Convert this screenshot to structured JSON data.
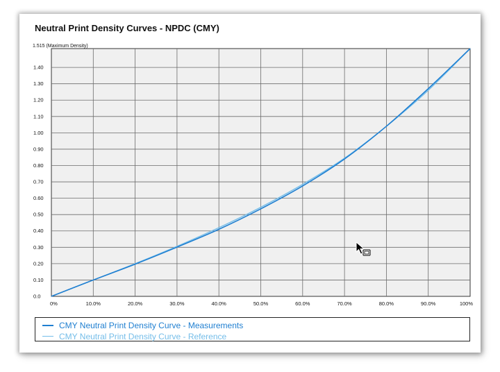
{
  "chart_data": {
    "type": "line",
    "title": "Neutral Print Density Curves - NPDC (CMY)",
    "y_top_label": "1.515 (Maximum Density)",
    "xlabel": "",
    "ylabel": "",
    "xlim": [
      0,
      100
    ],
    "ylim": [
      0,
      1.515
    ],
    "x_ticks": [
      "0%",
      "10.0%",
      "20.0%",
      "30.0%",
      "40.0%",
      "50.0%",
      "60.0%",
      "70.0%",
      "80.0%",
      "90.0%",
      "100%"
    ],
    "y_ticks": [
      "0.0",
      "0.10",
      "0.20",
      "0.30",
      "0.40",
      "0.50",
      "0.60",
      "0.70",
      "0.80",
      "0.90",
      "1.00",
      "1.10",
      "1.20",
      "1.30",
      "1.40"
    ],
    "y_tick_values": [
      0,
      0.1,
      0.2,
      0.3,
      0.4,
      0.5,
      0.6,
      0.7,
      0.8,
      0.9,
      1.0,
      1.1,
      1.2,
      1.3,
      1.4
    ],
    "grid": true,
    "legend_position": "bottom",
    "series": [
      {
        "name": "CMY Neutral Print Density Curve - Measurements",
        "color": "#1f7fd1",
        "x": [
          0,
          10,
          20,
          30,
          40,
          50,
          60,
          70,
          80,
          90,
          100
        ],
        "y": [
          0,
          0.1,
          0.197,
          0.301,
          0.41,
          0.535,
          0.675,
          0.84,
          1.04,
          1.27,
          1.515
        ]
      },
      {
        "name": "CMY Neutral Print Density Curve - Reference",
        "color": "#74bde9",
        "x": [
          0,
          10,
          20,
          30,
          40,
          50,
          60,
          70,
          80,
          90,
          100
        ],
        "y": [
          0,
          0.1,
          0.2,
          0.306,
          0.42,
          0.545,
          0.685,
          0.845,
          1.04,
          1.26,
          1.515
        ]
      }
    ]
  }
}
